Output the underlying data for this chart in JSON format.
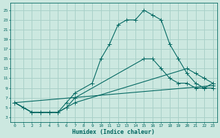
{
  "xlabel": "Humidex (Indice chaleur)",
  "bg_color": "#cce8e0",
  "grid_color": "#a8d0c8",
  "line_color": "#006660",
  "xlim": [
    -0.5,
    23.5
  ],
  "ylim": [
    2.0,
    26.5
  ],
  "xticks": [
    0,
    1,
    2,
    3,
    4,
    5,
    6,
    7,
    8,
    9,
    10,
    11,
    12,
    13,
    14,
    15,
    16,
    17,
    18,
    19,
    20,
    21,
    22,
    23
  ],
  "yticks": [
    3,
    5,
    7,
    9,
    11,
    13,
    15,
    17,
    19,
    21,
    23,
    25
  ],
  "curve1_x": [
    0,
    1,
    2,
    3,
    4,
    5,
    6,
    7,
    9,
    10,
    11,
    12,
    13,
    14,
    15,
    16,
    17,
    18,
    19,
    20,
    21,
    22,
    23
  ],
  "curve1_y": [
    6,
    5,
    4,
    4,
    4,
    4,
    6,
    8,
    10,
    15,
    18,
    22,
    23,
    23,
    25,
    24,
    23,
    18,
    15,
    12,
    10,
    9,
    9
  ],
  "curve2_x": [
    0,
    2,
    3,
    4,
    5,
    6,
    7,
    15,
    16,
    17,
    18,
    19,
    20,
    21,
    22,
    23
  ],
  "curve2_y": [
    6,
    4,
    4,
    4,
    4,
    5,
    7,
    15,
    15,
    13,
    11,
    10,
    10,
    9,
    9,
    10
  ],
  "curve3_x": [
    0,
    2,
    3,
    4,
    5,
    6,
    7,
    20,
    21,
    22,
    23
  ],
  "curve3_y": [
    6,
    4,
    4,
    4,
    4,
    5,
    6,
    13,
    12,
    11,
    10
  ],
  "curve4_x": [
    0,
    23
  ],
  "curve4_y": [
    6,
    9.5
  ]
}
